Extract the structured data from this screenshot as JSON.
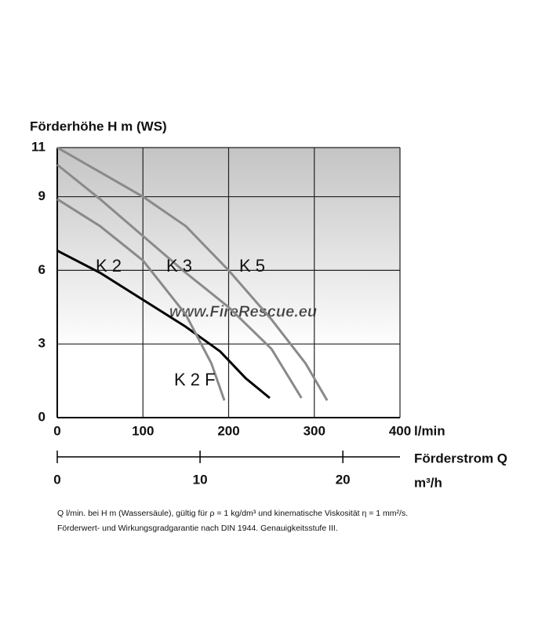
{
  "chart_data": {
    "type": "line",
    "y_label": "Förderhöhe H m (WS)",
    "x_label": "l/min",
    "x2_label": "Förderstrom Q",
    "x2_unit": "m³/h",
    "watermark": "www.FireRescue.eu",
    "xlim": [
      0,
      400
    ],
    "xticks": [
      0,
      100,
      200,
      300,
      400
    ],
    "x2lim": [
      0,
      24
    ],
    "x2ticks": [
      0,
      10,
      20
    ],
    "ylim": [
      0,
      11
    ],
    "yticks": [
      0,
      3,
      6,
      9,
      11
    ],
    "grid": true,
    "series": [
      {
        "name": "K 2",
        "color": "#000000",
        "x": [
          0,
          50,
          100,
          150,
          190,
          220,
          248
        ],
        "values": [
          6.8,
          5.9,
          4.8,
          3.7,
          2.7,
          1.6,
          0.8
        ]
      },
      {
        "name": "K 3",
        "color": "#8a8a8a",
        "x": [
          0,
          50,
          100,
          150,
          200,
          250,
          285
        ],
        "values": [
          10.3,
          8.9,
          7.4,
          5.9,
          4.5,
          2.8,
          0.8
        ]
      },
      {
        "name": "K 5",
        "color": "#8a8a8a",
        "x": [
          0,
          100,
          150,
          200,
          250,
          290,
          315
        ],
        "values": [
          11,
          9,
          7.8,
          6,
          4,
          2.2,
          0.7
        ]
      },
      {
        "name": "K 2 F",
        "color": "#8a8a8a",
        "x": [
          0,
          50,
          100,
          150,
          180,
          195
        ],
        "values": [
          8.9,
          7.8,
          6.4,
          4.2,
          2.2,
          0.7
        ]
      }
    ],
    "footnote": [
      "Q l/min. bei H m (Wassersäule), gültig für ρ = 1 kg/dm³ und kinematische Viskosität η = 1 mm²/s.",
      "Förderwert- und Wirkungsgradgarantie nach DIN 1944. Genauigkeitsstufe III."
    ]
  }
}
